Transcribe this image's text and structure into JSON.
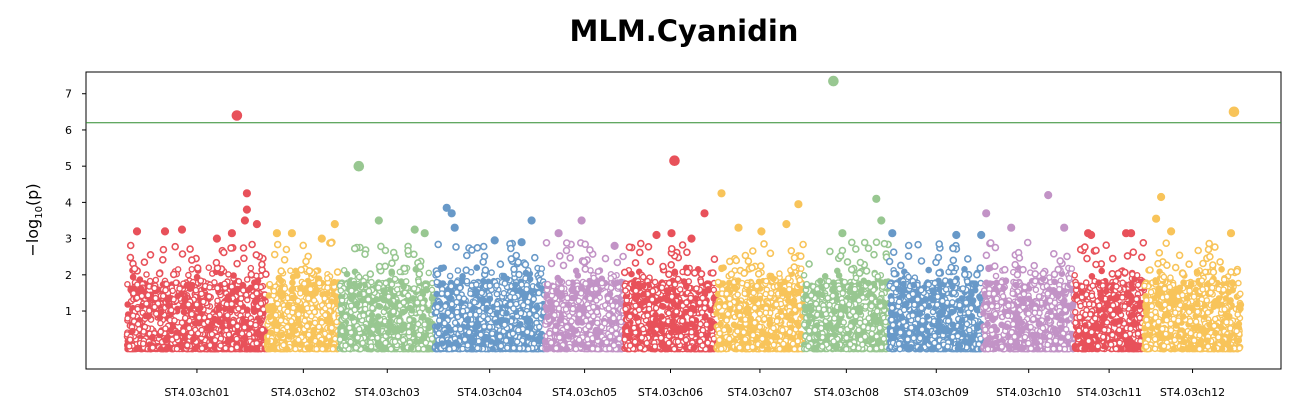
{
  "chart_data": {
    "type": "scatter",
    "title": "MLM.Cyanidin",
    "ylabel_main": "−log",
    "ylabel_sub": "10",
    "ylabel_tail": "(p)",
    "ylim": [
      -0.6,
      7.6
    ],
    "yticks": [
      "1",
      "2",
      "3",
      "4",
      "5",
      "6",
      "7"
    ],
    "threshold": 6.2,
    "threshold_color": "#2e8b2e",
    "grid": false,
    "legend": "none",
    "chromosomes": [
      {
        "name": "ST4.03ch01",
        "color": "#e8515a",
        "start": 0,
        "end": 140,
        "peaks": [
          [
            110,
            6.4
          ],
          [
            120,
            4.25
          ],
          [
            120,
            3.8
          ],
          [
            118,
            3.5
          ],
          [
            10,
            3.2
          ],
          [
            38,
            3.2
          ],
          [
            55,
            3.25
          ],
          [
            90,
            3.0
          ],
          [
            105,
            3.15
          ],
          [
            130,
            3.4
          ]
        ]
      },
      {
        "name": "ST4.03ch02",
        "color": "#f8c45a",
        "start": 140,
        "end": 213,
        "peaks": [
          [
            150,
            3.15
          ],
          [
            165,
            3.15
          ],
          [
            195,
            3.0
          ],
          [
            208,
            3.4
          ]
        ]
      },
      {
        "name": "ST4.03ch03",
        "color": "#98c791",
        "start": 213,
        "end": 308,
        "peaks": [
          [
            232,
            5.0
          ],
          [
            252,
            3.5
          ],
          [
            288,
            3.25
          ],
          [
            298,
            3.15
          ]
        ]
      },
      {
        "name": "ST4.03ch04",
        "color": "#6899c8",
        "start": 308,
        "end": 418,
        "peaks": [
          [
            320,
            3.85
          ],
          [
            325,
            3.7
          ],
          [
            328,
            3.3
          ],
          [
            368,
            2.95
          ],
          [
            395,
            2.9
          ],
          [
            405,
            3.5
          ]
        ]
      },
      {
        "name": "ST4.03ch05",
        "color": "#c293c6",
        "start": 418,
        "end": 498,
        "peaks": [
          [
            455,
            3.5
          ],
          [
            432,
            3.15
          ],
          [
            488,
            2.8
          ]
        ]
      },
      {
        "name": "ST4.03ch06",
        "color": "#e8515a",
        "start": 498,
        "end": 590,
        "peaks": [
          [
            548,
            5.15
          ],
          [
            578,
            3.7
          ],
          [
            530,
            3.1
          ],
          [
            545,
            3.15
          ],
          [
            565,
            3.0
          ]
        ]
      },
      {
        "name": "ST4.03ch07",
        "color": "#f8c45a",
        "start": 590,
        "end": 677,
        "peaks": [
          [
            595,
            4.25
          ],
          [
            672,
            3.95
          ],
          [
            612,
            3.3
          ],
          [
            635,
            3.2
          ],
          [
            660,
            3.4
          ]
        ]
      },
      {
        "name": "ST4.03ch08",
        "color": "#98c791",
        "start": 677,
        "end": 763,
        "peaks": [
          [
            707,
            7.35
          ],
          [
            750,
            4.1
          ],
          [
            716,
            3.15
          ],
          [
            755,
            3.5
          ]
        ]
      },
      {
        "name": "ST4.03ch09",
        "color": "#6899c8",
        "start": 763,
        "end": 857,
        "peaks": [
          [
            766,
            3.15
          ],
          [
            830,
            3.1
          ],
          [
            855,
            3.1
          ]
        ]
      },
      {
        "name": "ST4.03ch10",
        "color": "#c293c6",
        "start": 857,
        "end": 948,
        "peaks": [
          [
            922,
            4.2
          ],
          [
            860,
            3.7
          ],
          [
            885,
            3.3
          ],
          [
            938,
            3.3
          ]
        ]
      },
      {
        "name": "ST4.03ch11",
        "color": "#e8515a",
        "start": 948,
        "end": 1018,
        "peaks": [
          [
            962,
            3.15
          ],
          [
            965,
            3.1
          ],
          [
            1000,
            3.15
          ],
          [
            1005,
            3.15
          ]
        ]
      },
      {
        "name": "ST4.03ch12",
        "color": "#f8c45a",
        "start": 1018,
        "end": 1115,
        "peaks": [
          [
            1108,
            6.5
          ],
          [
            1035,
            4.15
          ],
          [
            1030,
            3.55
          ],
          [
            1045,
            3.2
          ],
          [
            1105,
            3.15
          ]
        ]
      }
    ]
  }
}
